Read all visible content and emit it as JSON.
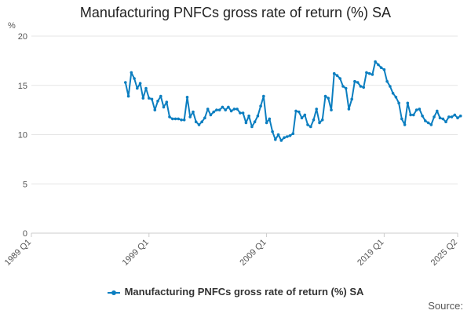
{
  "chart_data": {
    "type": "line",
    "title": "Manufacturing PNFCs gross rate of return (%) SA",
    "ylabel": "%",
    "xlabel": "",
    "ylim": [
      0,
      20
    ],
    "yticks": [
      0,
      5,
      10,
      15,
      20
    ],
    "xlim": [
      1989.0,
      2025.25
    ],
    "xticks": [
      {
        "x": 1989.0,
        "label": "1989 Q1"
      },
      {
        "x": 1999.0,
        "label": "1999 Q1"
      },
      {
        "x": 2009.0,
        "label": "2009 Q1"
      },
      {
        "x": 2019.0,
        "label": "2019 Q1"
      },
      {
        "x": 2025.25,
        "label": "2025 Q2"
      }
    ],
    "grid": true,
    "legend": "bottom",
    "series": [
      {
        "name": "Manufacturing PNFCs gross rate of return (%) SA",
        "color": "#0b7ec0",
        "points": [
          [
            1997.0,
            15.3
          ],
          [
            1997.25,
            13.9
          ],
          [
            1997.5,
            16.3
          ],
          [
            1997.75,
            15.7
          ],
          [
            1998.0,
            14.7
          ],
          [
            1998.25,
            15.2
          ],
          [
            1998.5,
            13.7
          ],
          [
            1998.75,
            14.7
          ],
          [
            1999.0,
            13.7
          ],
          [
            1999.25,
            13.6
          ],
          [
            1999.5,
            12.5
          ],
          [
            1999.75,
            13.4
          ],
          [
            2000.0,
            13.9
          ],
          [
            2000.25,
            12.8
          ],
          [
            2000.5,
            13.3
          ],
          [
            2000.75,
            11.8
          ],
          [
            2001.0,
            11.6
          ],
          [
            2001.25,
            11.6
          ],
          [
            2001.5,
            11.6
          ],
          [
            2001.75,
            11.5
          ],
          [
            2002.0,
            11.5
          ],
          [
            2002.25,
            13.8
          ],
          [
            2002.5,
            11.8
          ],
          [
            2002.75,
            12.3
          ],
          [
            2003.0,
            11.3
          ],
          [
            2003.25,
            11.0
          ],
          [
            2003.5,
            11.3
          ],
          [
            2003.75,
            11.7
          ],
          [
            2004.0,
            12.6
          ],
          [
            2004.25,
            12.0
          ],
          [
            2004.5,
            12.3
          ],
          [
            2004.75,
            12.5
          ],
          [
            2005.0,
            12.5
          ],
          [
            2005.25,
            12.8
          ],
          [
            2005.5,
            12.5
          ],
          [
            2005.75,
            12.8
          ],
          [
            2006.0,
            12.4
          ],
          [
            2006.25,
            12.6
          ],
          [
            2006.5,
            12.6
          ],
          [
            2006.75,
            12.2
          ],
          [
            2007.0,
            12.2
          ],
          [
            2007.25,
            11.2
          ],
          [
            2007.5,
            11.9
          ],
          [
            2007.75,
            10.8
          ],
          [
            2008.0,
            11.3
          ],
          [
            2008.25,
            11.9
          ],
          [
            2008.5,
            12.9
          ],
          [
            2008.75,
            13.9
          ],
          [
            2009.0,
            11.2
          ],
          [
            2009.25,
            11.6
          ],
          [
            2009.5,
            10.3
          ],
          [
            2009.75,
            9.5
          ],
          [
            2010.0,
            10.0
          ],
          [
            2010.25,
            9.4
          ],
          [
            2010.5,
            9.7
          ],
          [
            2010.75,
            9.8
          ],
          [
            2011.0,
            9.9
          ],
          [
            2011.25,
            10.1
          ],
          [
            2011.5,
            12.4
          ],
          [
            2011.75,
            12.3
          ],
          [
            2012.0,
            11.7
          ],
          [
            2012.25,
            12.0
          ],
          [
            2012.5,
            11.0
          ],
          [
            2012.75,
            10.8
          ],
          [
            2013.0,
            11.5
          ],
          [
            2013.25,
            12.6
          ],
          [
            2013.5,
            11.2
          ],
          [
            2013.75,
            11.5
          ],
          [
            2014.0,
            13.9
          ],
          [
            2014.25,
            13.7
          ],
          [
            2014.5,
            12.5
          ],
          [
            2014.75,
            16.2
          ],
          [
            2015.0,
            16.0
          ],
          [
            2015.25,
            15.7
          ],
          [
            2015.5,
            14.9
          ],
          [
            2015.75,
            14.7
          ],
          [
            2016.0,
            12.6
          ],
          [
            2016.25,
            13.6
          ],
          [
            2016.5,
            15.4
          ],
          [
            2016.75,
            15.3
          ],
          [
            2017.0,
            14.9
          ],
          [
            2017.25,
            14.8
          ],
          [
            2017.5,
            16.3
          ],
          [
            2017.75,
            16.2
          ],
          [
            2018.0,
            16.1
          ],
          [
            2018.25,
            17.4
          ],
          [
            2018.5,
            17.1
          ],
          [
            2018.75,
            16.8
          ],
          [
            2019.0,
            16.6
          ],
          [
            2019.25,
            15.4
          ],
          [
            2019.5,
            14.9
          ],
          [
            2019.75,
            14.2
          ],
          [
            2020.0,
            13.8
          ],
          [
            2020.25,
            13.2
          ],
          [
            2020.5,
            11.6
          ],
          [
            2020.75,
            11.0
          ],
          [
            2021.0,
            13.2
          ],
          [
            2021.25,
            12.0
          ],
          [
            2021.5,
            12.0
          ],
          [
            2021.75,
            12.5
          ],
          [
            2022.0,
            12.6
          ],
          [
            2022.25,
            11.9
          ],
          [
            2022.5,
            11.4
          ],
          [
            2022.75,
            11.2
          ],
          [
            2023.0,
            11.0
          ],
          [
            2023.25,
            11.8
          ],
          [
            2023.5,
            12.4
          ],
          [
            2023.75,
            11.7
          ],
          [
            2024.0,
            11.6
          ],
          [
            2024.25,
            11.3
          ],
          [
            2024.5,
            11.8
          ],
          [
            2024.75,
            11.8
          ],
          [
            2025.0,
            12.0
          ],
          [
            2025.25,
            11.7
          ],
          [
            2025.5,
            11.9
          ]
        ]
      }
    ]
  },
  "source_label": "Source:"
}
